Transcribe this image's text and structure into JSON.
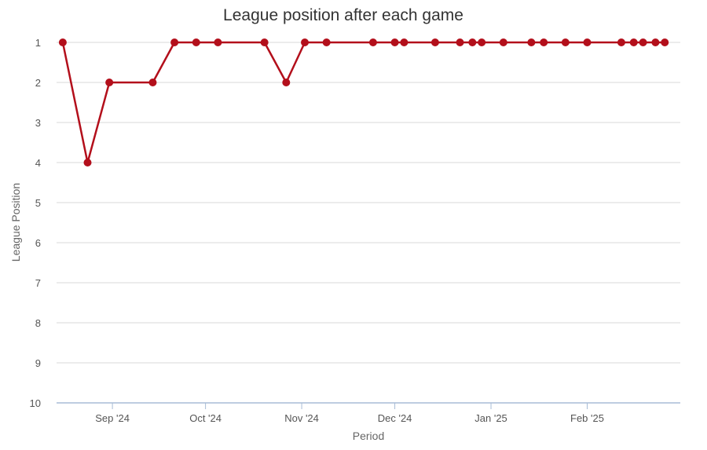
{
  "chart_data": {
    "type": "line",
    "title": "League position after each game",
    "xlabel": "Period",
    "ylabel": "League Position",
    "ylim": [
      1,
      10
    ],
    "y_reversed": true,
    "y_ticks": [
      1,
      2,
      3,
      4,
      5,
      6,
      7,
      8,
      9,
      10
    ],
    "x_range": [
      "2024-08-14",
      "2025-03-03"
    ],
    "x_ticks": [
      {
        "date": "2024-09-01",
        "label": "Sep '24"
      },
      {
        "date": "2024-10-01",
        "label": "Oct '24"
      },
      {
        "date": "2024-11-01",
        "label": "Nov '24"
      },
      {
        "date": "2024-12-01",
        "label": "Dec '24"
      },
      {
        "date": "2025-01-01",
        "label": "Jan '25"
      },
      {
        "date": "2025-02-01",
        "label": "Feb '25"
      }
    ],
    "grid": true,
    "series": [
      {
        "color": "#b30f1b",
        "points": [
          {
            "x": "2024-08-16",
            "y": 1
          },
          {
            "x": "2024-08-24",
            "y": 4
          },
          {
            "x": "2024-08-31",
            "y": 2
          },
          {
            "x": "2024-09-14",
            "y": 2
          },
          {
            "x": "2024-09-21",
            "y": 1
          },
          {
            "x": "2024-09-28",
            "y": 1
          },
          {
            "x": "2024-10-05",
            "y": 1
          },
          {
            "x": "2024-10-20",
            "y": 1
          },
          {
            "x": "2024-10-27",
            "y": 2
          },
          {
            "x": "2024-11-02",
            "y": 1
          },
          {
            "x": "2024-11-09",
            "y": 1
          },
          {
            "x": "2024-11-24",
            "y": 1
          },
          {
            "x": "2024-12-01",
            "y": 1
          },
          {
            "x": "2024-12-04",
            "y": 1
          },
          {
            "x": "2024-12-14",
            "y": 1
          },
          {
            "x": "2024-12-22",
            "y": 1
          },
          {
            "x": "2024-12-26",
            "y": 1
          },
          {
            "x": "2024-12-29",
            "y": 1
          },
          {
            "x": "2025-01-05",
            "y": 1
          },
          {
            "x": "2025-01-14",
            "y": 1
          },
          {
            "x": "2025-01-18",
            "y": 1
          },
          {
            "x": "2025-01-25",
            "y": 1
          },
          {
            "x": "2025-02-01",
            "y": 1
          },
          {
            "x": "2025-02-12",
            "y": 1
          },
          {
            "x": "2025-02-16",
            "y": 1
          },
          {
            "x": "2025-02-19",
            "y": 1
          },
          {
            "x": "2025-02-23",
            "y": 1
          },
          {
            "x": "2025-02-26",
            "y": 1
          }
        ]
      }
    ]
  }
}
